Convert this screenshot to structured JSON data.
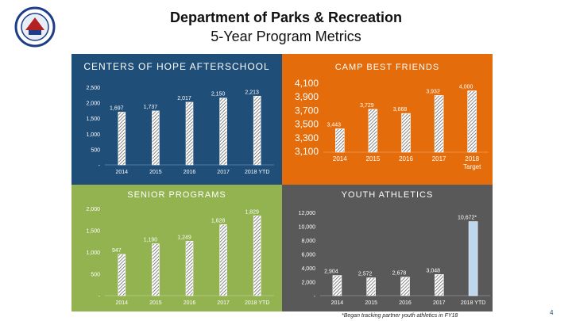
{
  "header": {
    "title": "Department of Parks & Recreation",
    "subtitle": "5-Year Program Metrics"
  },
  "logo": {
    "icon": "city-seal-icon"
  },
  "colors": {
    "hope_bg": "#1f4e79",
    "camp_bg": "#e46c0a",
    "senior_bg": "#93b250",
    "youth_bg": "#595959",
    "bar_fill": "#ffffff",
    "target_bar": "#bdd7ee"
  },
  "chart_data": [
    {
      "type": "bar",
      "title": "CENTERS OF HOPE AFTERSCHOOL",
      "categories": [
        "2014",
        "2015",
        "2016",
        "2017",
        "2018 YTD"
      ],
      "values": [
        1697,
        1737,
        2017,
        2150,
        2213
      ],
      "value_labels": [
        "1,697",
        "1,737",
        "2,017",
        "2,150",
        "2,213"
      ],
      "ylim": [
        0,
        2500
      ],
      "yticks": [
        0,
        500,
        1000,
        1500,
        2000,
        2500
      ],
      "ytick_labels": [
        "-",
        "500",
        "1,000",
        "1,500",
        "2,000",
        "2,500"
      ]
    },
    {
      "type": "bar",
      "title": "CAMP BEST FRIENDS",
      "categories": [
        "2014",
        "2015",
        "2016",
        "2017",
        "2018 Target"
      ],
      "values": [
        3443,
        3729,
        3668,
        3932,
        4000
      ],
      "value_labels": [
        "3,443",
        "3,729",
        "3,668",
        "3,932",
        "4,000"
      ],
      "ylim": [
        3100,
        4100
      ],
      "yticks": [
        3100,
        3300,
        3500,
        3700,
        3900,
        4100
      ],
      "ytick_labels": [
        "3,100",
        "3,300",
        "3,500",
        "3,700",
        "3,900",
        "4,100"
      ]
    },
    {
      "type": "bar",
      "title": "SENIOR PROGRAMS",
      "categories": [
        "2014",
        "2015",
        "2016",
        "2017",
        "2018 YTD"
      ],
      "values": [
        947,
        1190,
        1249,
        1628,
        1829
      ],
      "value_labels": [
        "947",
        "1,190",
        "1,249",
        "1,628",
        "1,829"
      ],
      "ylim": [
        0,
        2000
      ],
      "yticks": [
        0,
        500,
        1000,
        1500,
        2000
      ],
      "ytick_labels": [
        "-",
        "500",
        "1,000",
        "1,500",
        "2,000"
      ]
    },
    {
      "type": "bar",
      "title": "YOUTH ATHLETICS",
      "categories": [
        "2014",
        "2015",
        "2016",
        "2017",
        "2018 YTD"
      ],
      "values": [
        2904,
        2572,
        2678,
        3048,
        10672
      ],
      "value_labels": [
        "2,904",
        "2,572",
        "2,678",
        "3,048",
        "10,672*"
      ],
      "ylim": [
        0,
        12000
      ],
      "yticks": [
        0,
        2000,
        4000,
        6000,
        8000,
        10000,
        12000
      ],
      "ytick_labels": [
        "-",
        "2,000",
        "4,000",
        "6,000",
        "8,000",
        "10,000",
        "12,000"
      ],
      "footnote": "*Began tracking partner youth athletics in FY18"
    }
  ],
  "page_number": "4"
}
